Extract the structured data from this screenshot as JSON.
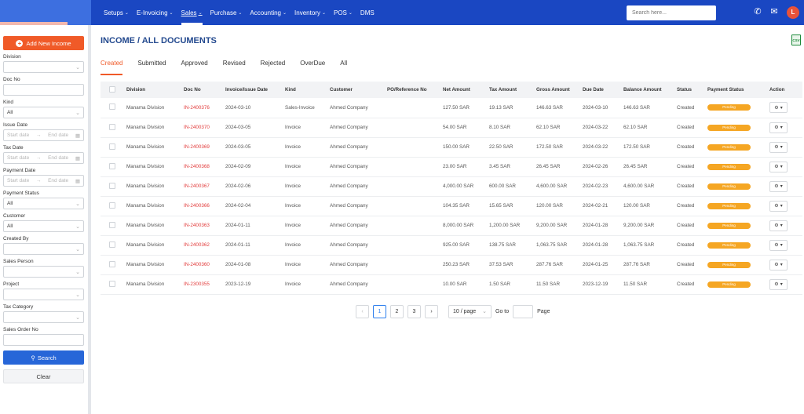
{
  "nav": {
    "items": [
      {
        "label": "Setups",
        "active": false
      },
      {
        "label": "E-Invoicing",
        "active": false
      },
      {
        "label": "Sales",
        "active": true
      },
      {
        "label": "Purchase",
        "active": false
      },
      {
        "label": "Accounting",
        "active": false
      },
      {
        "label": "Inventory",
        "active": false
      },
      {
        "label": "POS",
        "active": false
      },
      {
        "label": "DMS",
        "active": false
      }
    ],
    "search_placeholder": "Search here...",
    "avatar_initial": "L"
  },
  "sidebar": {
    "add_label": "Add New Income",
    "filters": {
      "division": {
        "label": "Division",
        "value": ""
      },
      "doc_no": {
        "label": "Doc No",
        "value": ""
      },
      "kind": {
        "label": "Kind",
        "value": "All"
      },
      "issue_date": {
        "label": "Issue Date",
        "start": "Start date",
        "end": "End date"
      },
      "tax_date": {
        "label": "Tax Date",
        "start": "Start date",
        "end": "End date"
      },
      "payment_date": {
        "label": "Payment Date",
        "start": "Start date",
        "end": "End date"
      },
      "payment_status": {
        "label": "Payment Status",
        "value": "All"
      },
      "customer": {
        "label": "Customer",
        "value": "All"
      },
      "created_by": {
        "label": "Created By",
        "value": ""
      },
      "sales_person": {
        "label": "Sales Person",
        "value": ""
      },
      "project": {
        "label": "Project",
        "value": ""
      },
      "tax_category": {
        "label": "Tax Category",
        "value": ""
      },
      "sales_order_no": {
        "label": "Sales Order No",
        "value": ""
      }
    },
    "search_label": "Search",
    "clear_label": "Clear"
  },
  "main": {
    "title": "INCOME / ALL DOCUMENTS",
    "csv_label": "CSV",
    "tabs": [
      "Created",
      "Submitted",
      "Approved",
      "Revised",
      "Rejected",
      "OverDue",
      "All"
    ],
    "active_tab": "Created",
    "columns": [
      "Division",
      "Doc No",
      "Invoice/Issue Date",
      "Kind",
      "Customer",
      "PO/Reference No",
      "Net Amount",
      "Tax Amount",
      "Gross Amount",
      "Due Date",
      "Balance Amount",
      "Status",
      "Payment Status",
      "Action"
    ],
    "rows": [
      {
        "division": "Manama Division",
        "doc_no": "IN-2400376",
        "date": "2024-03-10",
        "kind": "Sales-Invoice",
        "customer": "Ahmed Company",
        "po": "",
        "net": "127.50 SAR",
        "tax": "19.13 SAR",
        "gross": "146.63 SAR",
        "due": "2024-03-10",
        "balance": "146.63 SAR",
        "status": "Created",
        "payment": "Pending"
      },
      {
        "division": "Manama Division",
        "doc_no": "IN-2400370",
        "date": "2024-03-05",
        "kind": "Invoice",
        "customer": "Ahmed Company",
        "po": "",
        "net": "54.00 SAR",
        "tax": "8.10 SAR",
        "gross": "62.10 SAR",
        "due": "2024-03-22",
        "balance": "62.10 SAR",
        "status": "Created",
        "payment": "Pending"
      },
      {
        "division": "Manama Division",
        "doc_no": "IN-2400369",
        "date": "2024-03-05",
        "kind": "Invoice",
        "customer": "Ahmed Company",
        "po": "",
        "net": "150.00 SAR",
        "tax": "22.50 SAR",
        "gross": "172.50 SAR",
        "due": "2024-03-22",
        "balance": "172.50 SAR",
        "status": "Created",
        "payment": "Pending"
      },
      {
        "division": "Manama Division",
        "doc_no": "IN-2400368",
        "date": "2024-02-09",
        "kind": "Invoice",
        "customer": "Ahmed Company",
        "po": "",
        "net": "23.00 SAR",
        "tax": "3.45 SAR",
        "gross": "26.45 SAR",
        "due": "2024-02-26",
        "balance": "26.45 SAR",
        "status": "Created",
        "payment": "Pending"
      },
      {
        "division": "Manama Division",
        "doc_no": "IN-2400367",
        "date": "2024-02-06",
        "kind": "Invoice",
        "customer": "Ahmed Company",
        "po": "",
        "net": "4,000.00 SAR",
        "tax": "600.00 SAR",
        "gross": "4,600.00 SAR",
        "due": "2024-02-23",
        "balance": "4,600.00 SAR",
        "status": "Created",
        "payment": "Pending"
      },
      {
        "division": "Manama Division",
        "doc_no": "IN-2400366",
        "date": "2024-02-04",
        "kind": "Invoice",
        "customer": "Ahmed Company",
        "po": "",
        "net": "104.35 SAR",
        "tax": "15.65 SAR",
        "gross": "120.00 SAR",
        "due": "2024-02-21",
        "balance": "120.00 SAR",
        "status": "Created",
        "payment": "Pending"
      },
      {
        "division": "Manama Division",
        "doc_no": "IN-2400363",
        "date": "2024-01-11",
        "kind": "Invoice",
        "customer": "Ahmed Company",
        "po": "",
        "net": "8,000.00 SAR",
        "tax": "1,200.00 SAR",
        "gross": "9,200.00 SAR",
        "due": "2024-01-28",
        "balance": "9,200.00 SAR",
        "status": "Created",
        "payment": "Pending"
      },
      {
        "division": "Manama Division",
        "doc_no": "IN-2400362",
        "date": "2024-01-11",
        "kind": "Invoice",
        "customer": "Ahmed Company",
        "po": "",
        "net": "925.00 SAR",
        "tax": "138.75 SAR",
        "gross": "1,063.75 SAR",
        "due": "2024-01-28",
        "balance": "1,063.75 SAR",
        "status": "Created",
        "payment": "Pending"
      },
      {
        "division": "Manama Division",
        "doc_no": "IN-2400360",
        "date": "2024-01-08",
        "kind": "Invoice",
        "customer": "Ahmed Company",
        "po": "",
        "net": "250.23 SAR",
        "tax": "37.53 SAR",
        "gross": "287.76 SAR",
        "due": "2024-01-25",
        "balance": "287.76 SAR",
        "status": "Created",
        "payment": "Pending"
      },
      {
        "division": "Manama Division",
        "doc_no": "IN-2300355",
        "date": "2023-12-19",
        "kind": "Invoice",
        "customer": "Ahmed Company",
        "po": "",
        "net": "10.00 SAR",
        "tax": "1.50 SAR",
        "gross": "11.50 SAR",
        "due": "2023-12-19",
        "balance": "11.50 SAR",
        "status": "Created",
        "payment": "Pending"
      }
    ]
  },
  "pagination": {
    "prev": "‹",
    "next": "›",
    "pages": [
      "1",
      "2",
      "3"
    ],
    "current": "1",
    "per_page": "10 / page",
    "goto_label": "Go to",
    "page_label": "Page"
  },
  "colors": {
    "nav_bg": "#1a47c2",
    "accent": "#f05a28",
    "primary": "#2766d8",
    "pending": "#f5a623",
    "doc_no": "#e23b3b"
  }
}
